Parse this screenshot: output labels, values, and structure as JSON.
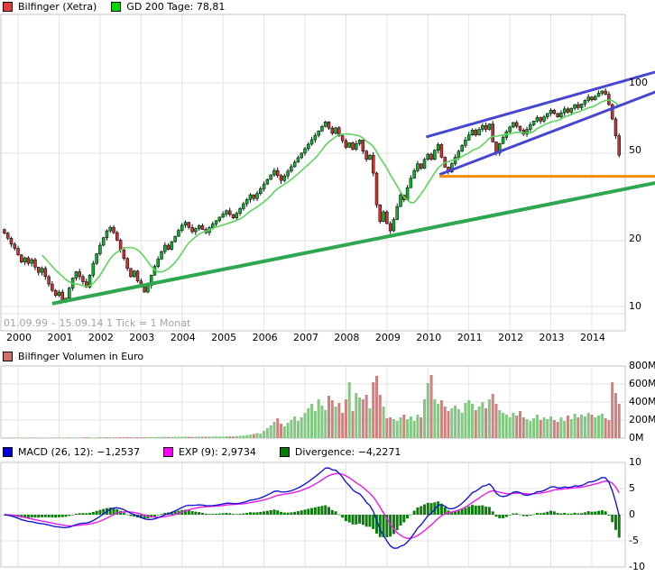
{
  "header_legend": {
    "series_label": "Bilfinger (Xetra)",
    "ma_label": "GD 200 Tage: 78,81"
  },
  "volume_legend": {
    "label": "Bilfinger Volumen in Euro"
  },
  "macd_legend": {
    "macd": "MACD (26, 12): −1,2537",
    "exp": "EXP (9): 2,9734",
    "divergence": "Divergence: −4,2271"
  },
  "footer": {
    "date_range": "01.09.99 – 15.09.14",
    "tick_info": "1 Tick = 1 Monat"
  },
  "colors": {
    "up": "#0fae2f",
    "down": "#c63333",
    "ma": "#5cd65c",
    "trend_green": "#2fa650",
    "channel_blue": "#4646d2",
    "orange": "#ff8a00",
    "vol_up": "#82c882",
    "vol_down": "#cf8080",
    "macd_line": "#1818cf",
    "signal_line": "#ea1bea",
    "histogram": "#0e7d0e",
    "legend_price": "#e03c3c",
    "legend_ma": "#00d800",
    "legend_vol": "#cf6f6f",
    "legend_macd": "#0000cc",
    "legend_exp": "#ff00ff",
    "legend_div": "#007e00",
    "grid": "#e3e3e3",
    "border": "#c6c6c6"
  },
  "chart_data": [
    {
      "type": "candlestick",
      "title": "Bilfinger (Xetra)",
      "y_scale": "log",
      "y_ticks": [
        100,
        50,
        20,
        10
      ],
      "x_tick_labels": [
        "2000",
        "2001",
        "2002",
        "2003",
        "2004",
        "2005",
        "2006",
        "2007",
        "2008",
        "2009",
        "2010",
        "2011",
        "2012",
        "2013",
        "2014"
      ],
      "x_start": "1999-09",
      "x_end": "2014-09",
      "tick_interval": "1 Monat",
      "overlay_ma": {
        "name": "GD 200 Tage",
        "last_value": 78.81,
        "window_months": 12
      },
      "closes": [
        21.3,
        20.2,
        19.0,
        18.2,
        17.0,
        15.8,
        16.5,
        15.6,
        16.2,
        15.0,
        14.2,
        14.8,
        13.6,
        12.6,
        11.8,
        11.2,
        11.6,
        10.7,
        10.9,
        12.1,
        13.4,
        14.3,
        13.6,
        12.9,
        12.2,
        13.8,
        15.6,
        17.2,
        18.8,
        20.3,
        21.8,
        22.6,
        21.4,
        19.8,
        17.9,
        16.4,
        14.8,
        13.6,
        14.4,
        13.0,
        12.2,
        11.6,
        12.4,
        13.8,
        15.1,
        16.3,
        17.6,
        18.8,
        18.0,
        19.5,
        20.6,
        21.9,
        23.1,
        23.8,
        22.6,
        21.6,
        22.3,
        23.0,
        22.1,
        21.4,
        22.5,
        23.4,
        24.2,
        25.1,
        25.9,
        26.8,
        25.8,
        24.9,
        26.1,
        27.4,
        28.8,
        30.1,
        31.6,
        30.4,
        32.0,
        33.6,
        35.3,
        37.0,
        38.8,
        40.6,
        38.5,
        36.6,
        38.4,
        40.3,
        42.2,
        44.2,
        46.3,
        48.5,
        50.8,
        53.2,
        55.7,
        58.3,
        61.0,
        63.9,
        66.9,
        62.8,
        59.5,
        63.0,
        58.0,
        55.2,
        51.5,
        54.0,
        50.5,
        53.5,
        55.5,
        49.5,
        45.5,
        47.5,
        39.5,
        28.5,
        24.0,
        26.5,
        23.5,
        21.8,
        24.5,
        28.0,
        31.5,
        30.0,
        34.0,
        37.5,
        40.5,
        43.5,
        41.5,
        45.5,
        48.0,
        45.5,
        50.0,
        53.0,
        46.5,
        42.0,
        40.0,
        43.5,
        46.5,
        49.5,
        52.5,
        55.5,
        58.5,
        61.5,
        58.5,
        62.0,
        64.5,
        62.0,
        65.5,
        54.5,
        48.5,
        53.5,
        57.0,
        60.5,
        63.5,
        66.5,
        64.0,
        61.5,
        59.0,
        62.0,
        65.0,
        67.5,
        70.0,
        67.5,
        70.5,
        73.0,
        75.5,
        73.0,
        70.5,
        73.5,
        76.5,
        74.0,
        77.0,
        80.0,
        77.5,
        80.5,
        83.5,
        86.5,
        84.0,
        87.0,
        90.0,
        92.0,
        89.0,
        80.0,
        69.0,
        58.0,
        47.5
      ],
      "trend_lines": [
        {
          "name": "support-trend",
          "color_key": "trend_green",
          "width": 4,
          "m1": 14,
          "p1": 10.3,
          "m2": 190.6,
          "p2": 35.7
        },
        {
          "name": "channel-lower",
          "color_key": "channel_blue",
          "width": 3,
          "m1": 127.4,
          "p1": 38.9,
          "m2": 190.6,
          "p2": 91.1
        },
        {
          "name": "channel-upper",
          "color_key": "channel_blue",
          "width": 3,
          "m1": 123.5,
          "p1": 57.3,
          "m2": 190.6,
          "p2": 111.9
        },
        {
          "name": "horizontal-support",
          "color_key": "orange",
          "width": 3,
          "m1": 127.4,
          "p1": 38.2,
          "m2": 190.6,
          "p2": 38.2
        }
      ]
    },
    {
      "type": "bar",
      "title": "Bilfinger Volumen in Euro",
      "y_ticks": [
        "800M",
        "600M",
        "400M",
        "200M",
        "0M"
      ],
      "values_millions": [
        4,
        5,
        4,
        6,
        5,
        4,
        6,
        5,
        7,
        5,
        4,
        6,
        5,
        4,
        5,
        6,
        7,
        5,
        6,
        8,
        6,
        7,
        5,
        6,
        9,
        7,
        6,
        8,
        9,
        8,
        10,
        9,
        8,
        7,
        9,
        8,
        10,
        9,
        8,
        9,
        8,
        9,
        10,
        12,
        11,
        13,
        12,
        14,
        12,
        13,
        15,
        14,
        15,
        16,
        14,
        13,
        15,
        16,
        14,
        15,
        17,
        16,
        18,
        17,
        18,
        20,
        19,
        18,
        22,
        25,
        28,
        32,
        38,
        45,
        55,
        50,
        80,
        110,
        140,
        180,
        220,
        160,
        130,
        170,
        200,
        240,
        190,
        230,
        280,
        330,
        380,
        300,
        430,
        360,
        310,
        470,
        420,
        350,
        390,
        280,
        430,
        620,
        300,
        500,
        450,
        430,
        480,
        330,
        620,
        690,
        480,
        350,
        220,
        230,
        210,
        190,
        230,
        260,
        210,
        240,
        190,
        260,
        230,
        430,
        610,
        700,
        430,
        380,
        420,
        350,
        300,
        330,
        360,
        320,
        280,
        390,
        420,
        380,
        310,
        350,
        400,
        330,
        430,
        490,
        380,
        310,
        280,
        260,
        230,
        280,
        250,
        300,
        230,
        210,
        190,
        220,
        260,
        200,
        230,
        210,
        240,
        200,
        180,
        230,
        190,
        250,
        210,
        270,
        230,
        260,
        240,
        280,
        260,
        230,
        250,
        270,
        220,
        200,
        620,
        500,
        380
      ]
    },
    {
      "type": "line+histogram",
      "series": [
        {
          "name": "MACD (26, 12)",
          "last_value": -1.2537
        },
        {
          "name": "EXP (9)",
          "last_value": 2.9734
        },
        {
          "name": "Divergence",
          "last_value": -4.2271
        }
      ],
      "y_ticks": [
        10,
        5,
        0,
        -5,
        -10
      ],
      "derived_from": "closes",
      "fast": 12,
      "slow": 26,
      "signal": 9
    }
  ]
}
